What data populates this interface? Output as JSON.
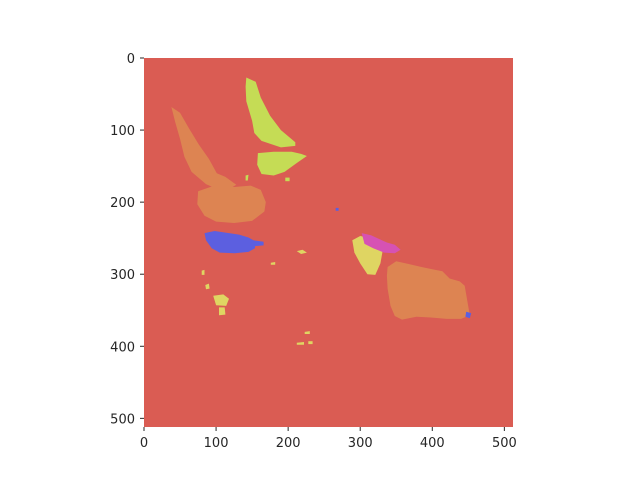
{
  "chart_data": {
    "type": "heatmap",
    "title": "",
    "xlabel": "",
    "ylabel": "",
    "xlim": [
      0,
      512
    ],
    "ylim": [
      512,
      0
    ],
    "grid": false,
    "legend": "none",
    "x_ticks": [
      {
        "value": 0,
        "label": "0"
      },
      {
        "value": 100,
        "label": "100"
      },
      {
        "value": 200,
        "label": "200"
      },
      {
        "value": 300,
        "label": "300"
      },
      {
        "value": 400,
        "label": "400"
      },
      {
        "value": 500,
        "label": "500"
      }
    ],
    "y_ticks": [
      {
        "value": 0,
        "label": "0"
      },
      {
        "value": 100,
        "label": "100"
      },
      {
        "value": 200,
        "label": "200"
      },
      {
        "value": 300,
        "label": "300"
      },
      {
        "value": 400,
        "label": "400"
      },
      {
        "value": 500,
        "label": "500"
      }
    ],
    "colors": {
      "background": "#da5c53",
      "segment_orange": "#dd8452",
      "segment_yellow_green": "#c5dc55",
      "segment_yellow": "#dfd562",
      "segment_blue": "#5c5fe0",
      "segment_magenta": "#d652b3"
    },
    "regions": [
      {
        "id": "yellow-green-top",
        "color": "segment_yellow_green",
        "points": [
          [
            142,
            27
          ],
          [
            155,
            33
          ],
          [
            162,
            55
          ],
          [
            175,
            80
          ],
          [
            190,
            100
          ],
          [
            210,
            117
          ],
          [
            210,
            122
          ],
          [
            190,
            124
          ],
          [
            178,
            120
          ],
          [
            163,
            115
          ],
          [
            153,
            104
          ],
          [
            150,
            87
          ],
          [
            142,
            60
          ],
          [
            141,
            40
          ]
        ]
      },
      {
        "id": "yellow-green-middle",
        "color": "segment_yellow_green",
        "points": [
          [
            158,
            132
          ],
          [
            180,
            130
          ],
          [
            205,
            130
          ],
          [
            218,
            133
          ],
          [
            226,
            136
          ],
          [
            213,
            145
          ],
          [
            195,
            158
          ],
          [
            180,
            163
          ],
          [
            163,
            161
          ],
          [
            157,
            148
          ]
        ]
      },
      {
        "id": "orange-left-arm",
        "color": "segment_orange",
        "points": [
          [
            38,
            68
          ],
          [
            50,
            76
          ],
          [
            62,
            97
          ],
          [
            76,
            120
          ],
          [
            90,
            140
          ],
          [
            101,
            160
          ],
          [
            113,
            165
          ],
          [
            128,
            176
          ],
          [
            118,
            182
          ],
          [
            102,
            182
          ],
          [
            86,
            175
          ],
          [
            66,
            158
          ],
          [
            56,
            137
          ],
          [
            50,
            112
          ],
          [
            43,
            88
          ]
        ]
      },
      {
        "id": "orange-left-body",
        "color": "segment_orange",
        "points": [
          [
            75,
            185
          ],
          [
            95,
            178
          ],
          [
            125,
            179
          ],
          [
            148,
            177
          ],
          [
            162,
            183
          ],
          [
            169,
            200
          ],
          [
            167,
            213
          ],
          [
            150,
            226
          ],
          [
            125,
            229
          ],
          [
            100,
            227
          ],
          [
            84,
            219
          ],
          [
            74,
            203
          ]
        ]
      },
      {
        "id": "blue-left",
        "color": "segment_blue",
        "points": [
          [
            84,
            243
          ],
          [
            98,
            240
          ],
          [
            118,
            243
          ],
          [
            132,
            245
          ],
          [
            145,
            249
          ],
          [
            154,
            254
          ],
          [
            154,
            264
          ],
          [
            145,
            269
          ],
          [
            126,
            271
          ],
          [
            105,
            270
          ],
          [
            94,
            264
          ],
          [
            86,
            253
          ]
        ]
      },
      {
        "id": "blue-left-tail",
        "color": "segment_blue",
        "points": [
          [
            152,
            253
          ],
          [
            166,
            255
          ],
          [
            166,
            260
          ],
          [
            154,
            261
          ]
        ]
      },
      {
        "id": "yellow-right",
        "color": "segment_yellow",
        "points": [
          [
            289,
            253
          ],
          [
            300,
            247
          ],
          [
            311,
            249
          ],
          [
            324,
            258
          ],
          [
            331,
            268
          ],
          [
            328,
            285
          ],
          [
            321,
            301
          ],
          [
            310,
            300
          ],
          [
            300,
            285
          ],
          [
            292,
            270
          ]
        ]
      },
      {
        "id": "magenta-right",
        "color": "segment_magenta",
        "points": [
          [
            302,
            243
          ],
          [
            315,
            246
          ],
          [
            326,
            251
          ],
          [
            337,
            256
          ],
          [
            348,
            259
          ],
          [
            356,
            266
          ],
          [
            348,
            271
          ],
          [
            333,
            270
          ],
          [
            318,
            264
          ],
          [
            306,
            258
          ]
        ]
      },
      {
        "id": "magenta-right-arm",
        "color": "segment_magenta",
        "points": [
          [
            358,
            297
          ],
          [
            375,
            296
          ],
          [
            390,
            297
          ],
          [
            398,
            300
          ],
          [
            394,
            306
          ],
          [
            376,
            306
          ],
          [
            360,
            303
          ]
        ]
      },
      {
        "id": "orange-right",
        "color": "segment_orange",
        "points": [
          [
            338,
            290
          ],
          [
            350,
            282
          ],
          [
            368,
            286
          ],
          [
            385,
            290
          ],
          [
            400,
            293
          ],
          [
            414,
            296
          ],
          [
            424,
            306
          ],
          [
            438,
            310
          ],
          [
            445,
            316
          ],
          [
            452,
            357
          ],
          [
            440,
            362
          ],
          [
            420,
            362
          ],
          [
            398,
            360
          ],
          [
            378,
            359
          ],
          [
            358,
            363
          ],
          [
            348,
            358
          ],
          [
            342,
            344
          ],
          [
            338,
            320
          ],
          [
            337,
            302
          ]
        ]
      },
      {
        "id": "blue-right-tip",
        "color": "segment_blue",
        "points": [
          [
            447,
            352
          ],
          [
            454,
            354
          ],
          [
            452,
            361
          ],
          [
            446,
            359
          ]
        ]
      },
      {
        "id": "yellow-small-1",
        "color": "segment_yellow",
        "points": [
          [
            96,
            330
          ],
          [
            110,
            328
          ],
          [
            118,
            334
          ],
          [
            114,
            344
          ],
          [
            100,
            343
          ]
        ]
      },
      {
        "id": "yellow-small-2",
        "color": "segment_yellow",
        "points": [
          [
            104,
            346
          ],
          [
            112,
            346
          ],
          [
            113,
            356
          ],
          [
            104,
            357
          ]
        ]
      },
      {
        "id": "yellow-small-3",
        "color": "segment_yellow",
        "points": [
          [
            85,
            315
          ],
          [
            90,
            313
          ],
          [
            91,
            320
          ],
          [
            86,
            321
          ]
        ]
      },
      {
        "id": "yellow-small-4",
        "color": "segment_yellow",
        "points": [
          [
            212,
            268
          ],
          [
            220,
            266
          ],
          [
            226,
            270
          ],
          [
            218,
            272
          ]
        ]
      },
      {
        "id": "yellow-small-5",
        "color": "segment_yellow",
        "points": [
          [
            176,
            284
          ],
          [
            182,
            283
          ],
          [
            182,
            287
          ],
          [
            176,
            287
          ]
        ]
      },
      {
        "id": "yellow-small-6",
        "color": "segment_yellow",
        "points": [
          [
            223,
            380
          ],
          [
            230,
            379
          ],
          [
            230,
            383
          ],
          [
            223,
            383
          ]
        ]
      },
      {
        "id": "yellow-small-7",
        "color": "segment_yellow",
        "points": [
          [
            212,
            395
          ],
          [
            222,
            394
          ],
          [
            222,
            398
          ],
          [
            212,
            398
          ]
        ]
      },
      {
        "id": "yellow-small-8",
        "color": "segment_yellow",
        "points": [
          [
            228,
            393
          ],
          [
            234,
            393
          ],
          [
            234,
            397
          ],
          [
            228,
            397
          ]
        ]
      },
      {
        "id": "yellow-small-9",
        "color": "segment_yellow",
        "points": [
          [
            80,
            295
          ],
          [
            84,
            294
          ],
          [
            84,
            301
          ],
          [
            80,
            301
          ]
        ]
      },
      {
        "id": "yellow-green-speck-1",
        "color": "segment_yellow_green",
        "points": [
          [
            141,
            163
          ],
          [
            145,
            162
          ],
          [
            144,
            170
          ],
          [
            141,
            170
          ]
        ]
      },
      {
        "id": "yellow-green-speck-2",
        "color": "segment_yellow_green",
        "points": [
          [
            196,
            166
          ],
          [
            202,
            166
          ],
          [
            202,
            171
          ],
          [
            196,
            171
          ]
        ]
      },
      {
        "id": "blue-speck",
        "color": "segment_blue",
        "points": [
          [
            266,
            208
          ],
          [
            270,
            208
          ],
          [
            270,
            212
          ],
          [
            266,
            212
          ]
        ]
      }
    ]
  }
}
